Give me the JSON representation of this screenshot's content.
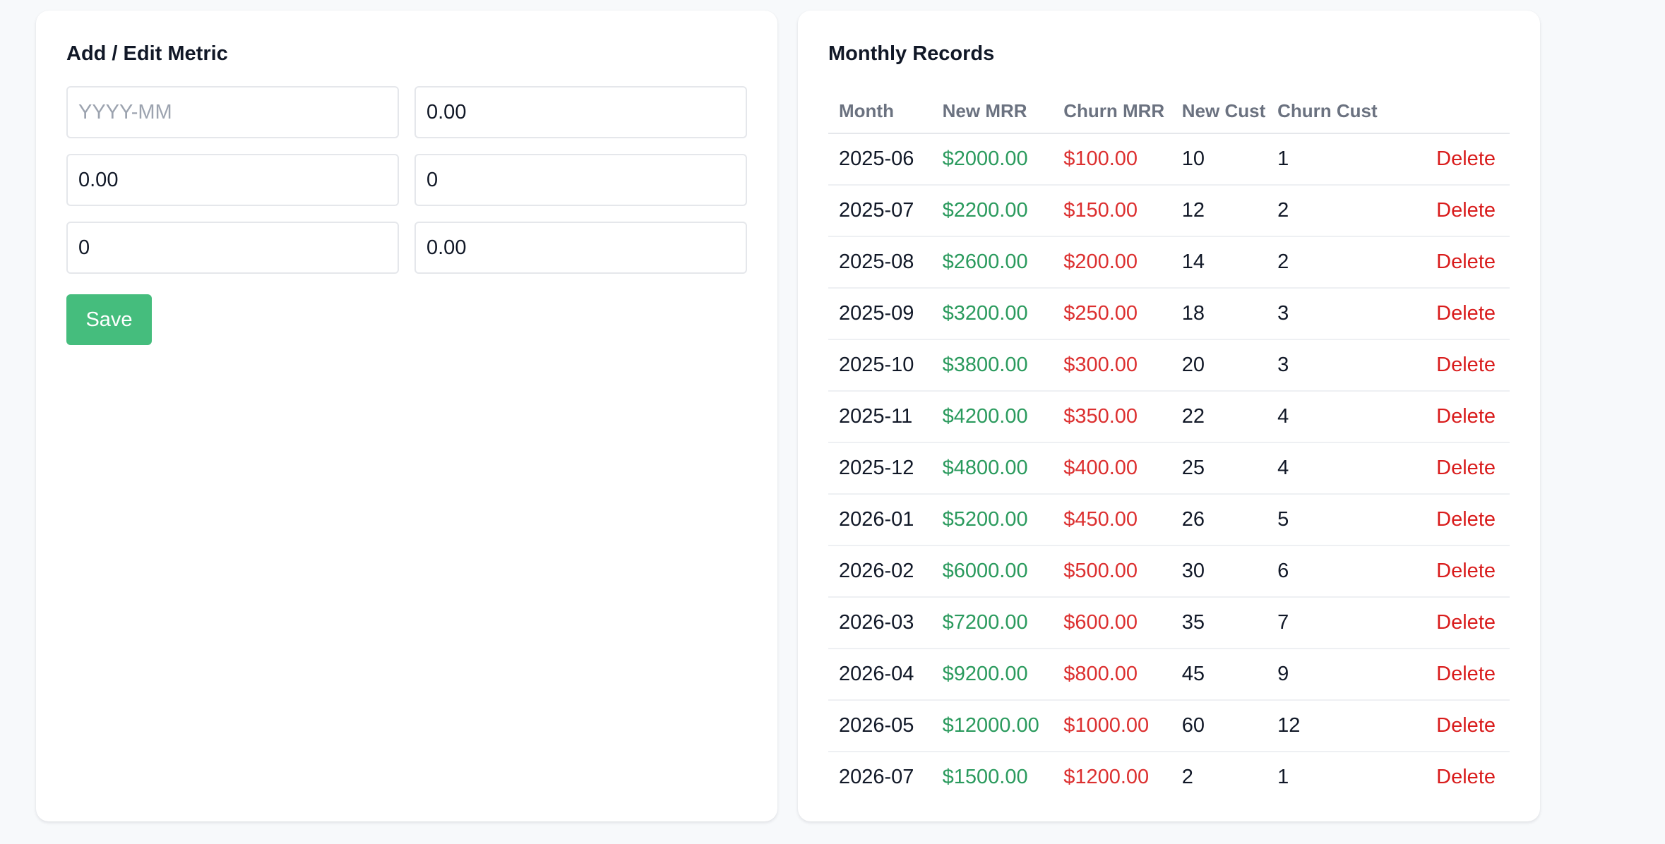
{
  "form": {
    "title": "Add / Edit Metric",
    "fields": [
      {
        "value": "",
        "placeholder": "YYYY-MM"
      },
      {
        "value": "0.00",
        "placeholder": ""
      },
      {
        "value": "0.00",
        "placeholder": ""
      },
      {
        "value": "0",
        "placeholder": ""
      },
      {
        "value": "0",
        "placeholder": ""
      },
      {
        "value": "0.00",
        "placeholder": ""
      }
    ],
    "save_label": "Save"
  },
  "records": {
    "title": "Monthly Records",
    "columns": [
      "Month",
      "New MRR",
      "Churn MRR",
      "New Cust",
      "Churn Cust"
    ],
    "delete_label": "Delete",
    "rows": [
      {
        "month": "2025-06",
        "new_mrr": "$2000.00",
        "churn_mrr": "$100.00",
        "new_cust": "10",
        "churn_cust": "1"
      },
      {
        "month": "2025-07",
        "new_mrr": "$2200.00",
        "churn_mrr": "$150.00",
        "new_cust": "12",
        "churn_cust": "2"
      },
      {
        "month": "2025-08",
        "new_mrr": "$2600.00",
        "churn_mrr": "$200.00",
        "new_cust": "14",
        "churn_cust": "2"
      },
      {
        "month": "2025-09",
        "new_mrr": "$3200.00",
        "churn_mrr": "$250.00",
        "new_cust": "18",
        "churn_cust": "3"
      },
      {
        "month": "2025-10",
        "new_mrr": "$3800.00",
        "churn_mrr": "$300.00",
        "new_cust": "20",
        "churn_cust": "3"
      },
      {
        "month": "2025-11",
        "new_mrr": "$4200.00",
        "churn_mrr": "$350.00",
        "new_cust": "22",
        "churn_cust": "4"
      },
      {
        "month": "2025-12",
        "new_mrr": "$4800.00",
        "churn_mrr": "$400.00",
        "new_cust": "25",
        "churn_cust": "4"
      },
      {
        "month": "2026-01",
        "new_mrr": "$5200.00",
        "churn_mrr": "$450.00",
        "new_cust": "26",
        "churn_cust": "5"
      },
      {
        "month": "2026-02",
        "new_mrr": "$6000.00",
        "churn_mrr": "$500.00",
        "new_cust": "30",
        "churn_cust": "6"
      },
      {
        "month": "2026-03",
        "new_mrr": "$7200.00",
        "churn_mrr": "$600.00",
        "new_cust": "35",
        "churn_cust": "7"
      },
      {
        "month": "2026-04",
        "new_mrr": "$9200.00",
        "churn_mrr": "$800.00",
        "new_cust": "45",
        "churn_cust": "9"
      },
      {
        "month": "2026-05",
        "new_mrr": "$12000.00",
        "churn_mrr": "$1000.00",
        "new_cust": "60",
        "churn_cust": "12"
      },
      {
        "month": "2026-07",
        "new_mrr": "$1500.00",
        "churn_mrr": "$1200.00",
        "new_cust": "2",
        "churn_cust": "1"
      }
    ]
  },
  "colors": {
    "page_background": "#f7f9fb",
    "save_button": "#45bd7d",
    "positive_value": "#2a9a5d",
    "negative_value": "#dc3030",
    "delete_action": "#d91c1c"
  }
}
